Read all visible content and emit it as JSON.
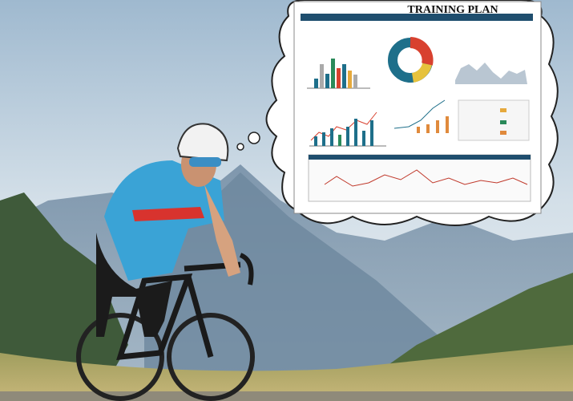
{
  "bubble": {
    "title": "TRAINING PLAN"
  }
}
